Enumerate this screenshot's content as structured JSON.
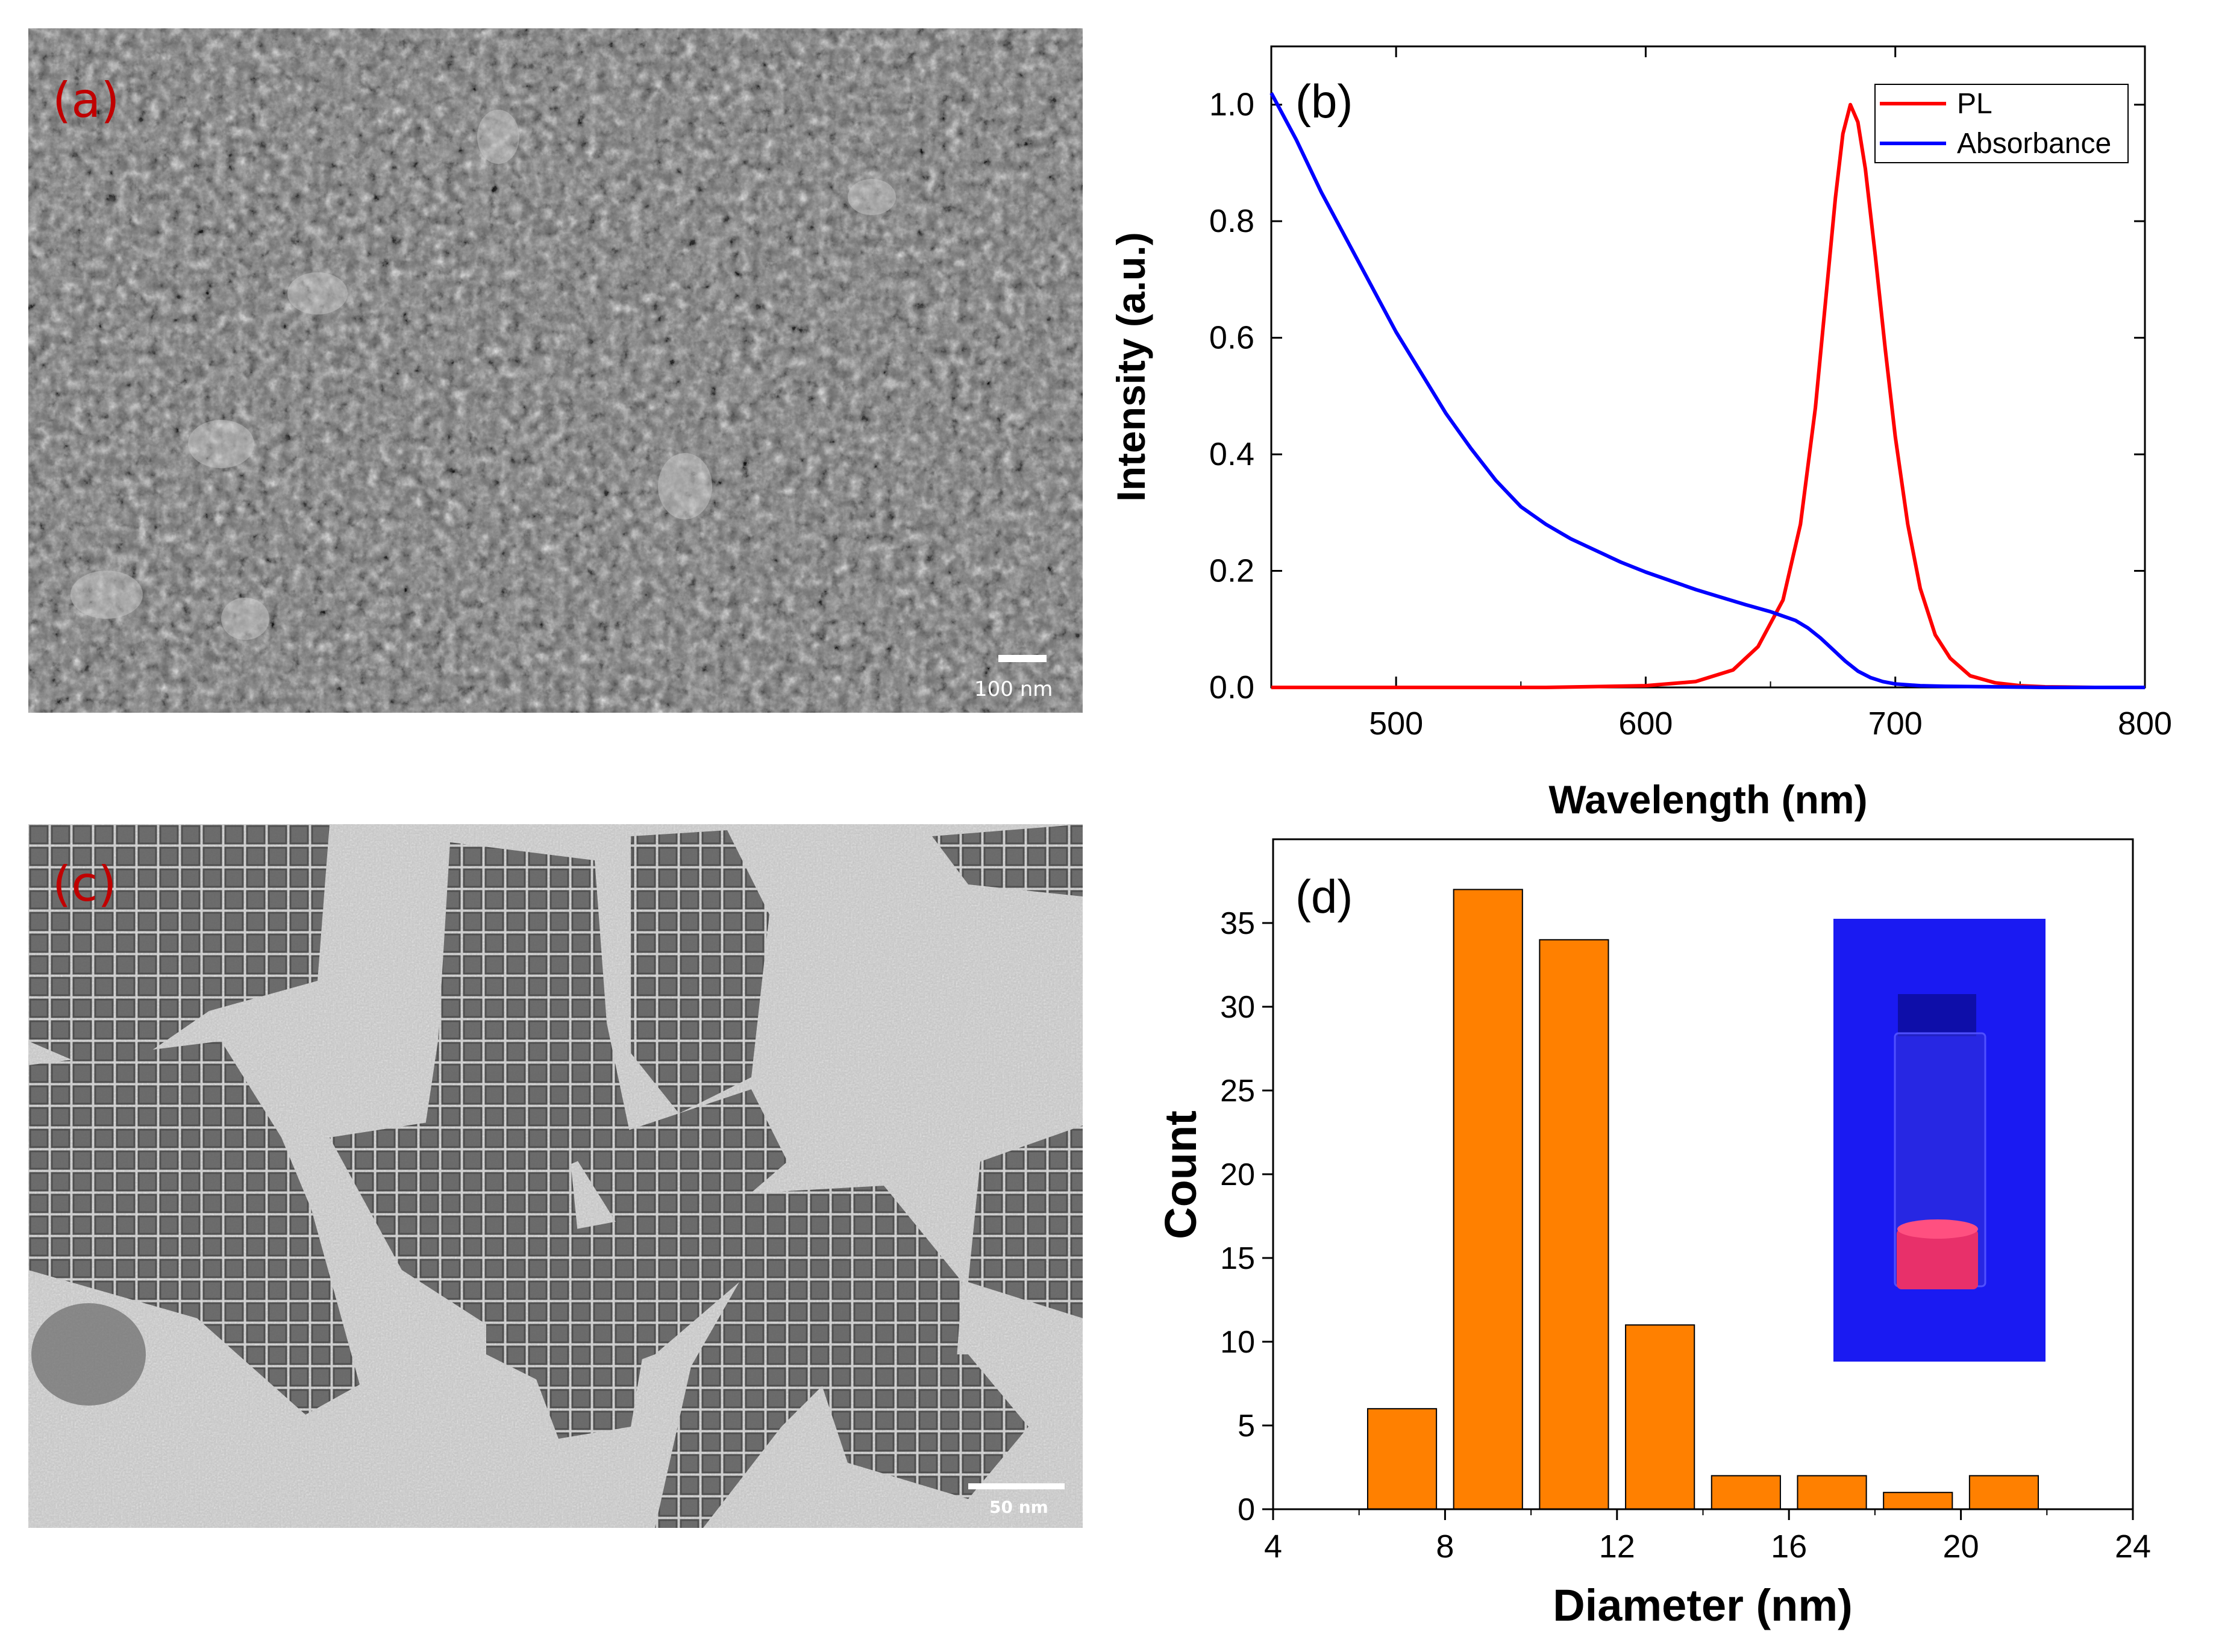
{
  "panels": {
    "a": {
      "label": "(a)",
      "type": "SEM micrograph",
      "scale_bar": "100 nm",
      "label_color": "#c00000"
    },
    "c": {
      "label": "(c)",
      "type": "TEM micrograph",
      "scale_bar": "50 nm",
      "label_color": "#c00000"
    },
    "d_inset": {
      "type": "photo of vial under UV light",
      "background_color": "#1c1cf0",
      "sample_color": "#e8306a"
    }
  },
  "chart_data": [
    {
      "type": "line",
      "panel_label": "(b)",
      "title": "",
      "xlabel": "Wavelength (nm)",
      "ylabel": "Intensity (a.u.)",
      "xlim": [
        450,
        800
      ],
      "ylim": [
        0,
        1.1
      ],
      "xticks": [
        500,
        600,
        700,
        800
      ],
      "yticks": [
        0.0,
        0.2,
        0.4,
        0.6,
        0.8,
        1.0
      ],
      "xtick_labels": [
        "500",
        "600",
        "700",
        "800"
      ],
      "ytick_labels": [
        "0.0",
        "0.2",
        "0.4",
        "0.6",
        "0.8",
        "1.0"
      ],
      "legend_position": "top-right",
      "series": [
        {
          "name": "PL",
          "color": "#ff0000",
          "x": [
            450,
            500,
            560,
            600,
            620,
            635,
            645,
            655,
            662,
            668,
            672,
            676,
            679,
            682,
            685,
            688,
            692,
            696,
            700,
            705,
            710,
            716,
            722,
            730,
            740,
            750,
            760,
            780,
            800
          ],
          "y": [
            0,
            0,
            0,
            0.003,
            0.01,
            0.03,
            0.07,
            0.15,
            0.28,
            0.48,
            0.66,
            0.84,
            0.95,
            1.0,
            0.97,
            0.89,
            0.74,
            0.58,
            0.43,
            0.28,
            0.17,
            0.09,
            0.05,
            0.02,
            0.008,
            0.003,
            0.001,
            0,
            0
          ]
        },
        {
          "name": "Absorbance",
          "color": "#0000ff",
          "x": [
            450,
            460,
            470,
            480,
            490,
            500,
            510,
            520,
            530,
            540,
            550,
            560,
            570,
            580,
            590,
            600,
            610,
            620,
            630,
            640,
            650,
            660,
            665,
            670,
            675,
            680,
            685,
            690,
            695,
            700,
            710,
            720,
            740,
            760,
            800
          ],
          "y": [
            1.02,
            0.94,
            0.85,
            0.77,
            0.69,
            0.61,
            0.54,
            0.47,
            0.41,
            0.355,
            0.31,
            0.28,
            0.255,
            0.235,
            0.215,
            0.198,
            0.183,
            0.168,
            0.155,
            0.142,
            0.13,
            0.115,
            0.102,
            0.085,
            0.065,
            0.045,
            0.028,
            0.017,
            0.01,
            0.006,
            0.003,
            0.002,
            0.001,
            0,
            0
          ]
        }
      ]
    },
    {
      "type": "bar",
      "panel_label": "(d)",
      "title": "",
      "xlabel": "Diameter (nm)",
      "ylabel": "Count",
      "xlim": [
        4,
        24
      ],
      "ylim": [
        0,
        40
      ],
      "xticks": [
        4,
        8,
        12,
        16,
        20,
        24
      ],
      "yticks": [
        0,
        5,
        10,
        15,
        20,
        25,
        30,
        35
      ],
      "xtick_labels": [
        "4",
        "8",
        "12",
        "16",
        "20",
        "24"
      ],
      "ytick_labels": [
        "0",
        "5",
        "10",
        "15",
        "20",
        "25",
        "30",
        "35"
      ],
      "bar_color": "#ff8000",
      "bars": [
        {
          "x0": 6.2,
          "x1": 7.8,
          "value": 6
        },
        {
          "x0": 8.2,
          "x1": 9.8,
          "value": 37
        },
        {
          "x0": 10.2,
          "x1": 11.8,
          "value": 34
        },
        {
          "x0": 12.2,
          "x1": 13.8,
          "value": 11
        },
        {
          "x0": 14.2,
          "x1": 15.8,
          "value": 2
        },
        {
          "x0": 16.2,
          "x1": 17.8,
          "value": 2
        },
        {
          "x0": 18.2,
          "x1": 19.8,
          "value": 1
        },
        {
          "x0": 20.2,
          "x1": 21.8,
          "value": 2
        }
      ]
    }
  ]
}
